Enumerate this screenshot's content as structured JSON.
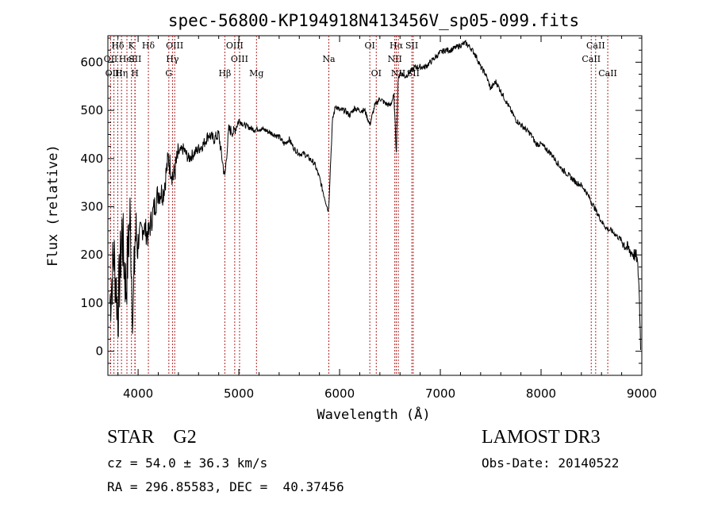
{
  "chart_data": {
    "type": "line",
    "title": "spec-56800-KP194918N413456V_sp05-099.fits",
    "xlabel": "Wavelength (Å)",
    "ylabel": "Flux (relative)",
    "xlim": [
      3700,
      9000
    ],
    "ylim": [
      -50,
      655
    ],
    "xticks": [
      4000,
      5000,
      6000,
      7000,
      8000,
      9000
    ],
    "yticks": [
      0,
      100,
      200,
      300,
      400,
      500,
      600
    ],
    "line_color": "#000000",
    "marker_color": "#b22222",
    "spectrum_anchor_points": {
      "x": [
        3720,
        3760,
        3800,
        3840,
        3880,
        3920,
        3950,
        3970,
        4000,
        4050,
        4100,
        4150,
        4200,
        4250,
        4300,
        4350,
        4400,
        4450,
        4500,
        4550,
        4600,
        4650,
        4700,
        4750,
        4800,
        4860,
        4900,
        4950,
        5000,
        5050,
        5100,
        5150,
        5200,
        5250,
        5300,
        5350,
        5400,
        5450,
        5500,
        5550,
        5600,
        5650,
        5700,
        5750,
        5800,
        5850,
        5890,
        5910,
        5930,
        5960,
        6000,
        6050,
        6100,
        6150,
        6200,
        6250,
        6300,
        6350,
        6400,
        6450,
        6500,
        6540,
        6563,
        6580,
        6600,
        6650,
        6700,
        6750,
        6800,
        6850,
        6900,
        6950,
        7000,
        7050,
        7100,
        7150,
        7200,
        7250,
        7300,
        7350,
        7400,
        7450,
        7500,
        7550,
        7600,
        7650,
        7700,
        7750,
        7800,
        7850,
        7900,
        7950,
        8000,
        8050,
        8100,
        8150,
        8200,
        8250,
        8300,
        8350,
        8400,
        8450,
        8500,
        8550,
        8600,
        8650,
        8700,
        8750,
        8800,
        8850,
        8900,
        8950,
        8970,
        8990
      ],
      "y": [
        100,
        200,
        80,
        250,
        130,
        280,
        60,
        240,
        230,
        260,
        240,
        290,
        330,
        330,
        400,
        360,
        410,
        420,
        400,
        410,
        420,
        430,
        450,
        440,
        450,
        360,
        460,
        455,
        480,
        470,
        465,
        460,
        462,
        460,
        455,
        450,
        445,
        430,
        440,
        420,
        410,
        410,
        400,
        390,
        360,
        320,
        290,
        390,
        480,
        510,
        500,
        500,
        490,
        505,
        500,
        500,
        470,
        510,
        525,
        515,
        510,
        530,
        410,
        560,
        580,
        570,
        580,
        590,
        590,
        590,
        600,
        610,
        620,
        625,
        625,
        630,
        635,
        640,
        630,
        615,
        590,
        575,
        545,
        560,
        540,
        520,
        500,
        480,
        470,
        460,
        450,
        430,
        430,
        420,
        410,
        395,
        380,
        370,
        360,
        350,
        345,
        330,
        310,
        290,
        270,
        255,
        250,
        240,
        230,
        215,
        205,
        195,
        150,
        0
      ]
    },
    "line_markers": [
      {
        "label": "Hδ",
        "x": 3798,
        "row": 0
      },
      {
        "label": "OII",
        "x": 3727,
        "row": 1
      },
      {
        "label": "OIII",
        "x": 3760,
        "row": 2
      },
      {
        "label": "Hη",
        "x": 3835,
        "row": 2
      },
      {
        "label": "HeI",
        "x": 3889,
        "row": 1
      },
      {
        "label": "K",
        "x": 3934,
        "row": 0
      },
      {
        "label": "SII",
        "x": 3970,
        "row": 1
      },
      {
        "label": "H",
        "x": 3968,
        "row": 2
      },
      {
        "label": "Hδ",
        "x": 4102,
        "row": 0
      },
      {
        "label": "OIII",
        "x": 4363,
        "row": 0
      },
      {
        "label": "Hγ",
        "x": 4341,
        "row": 1
      },
      {
        "label": "G",
        "x": 4305,
        "row": 2
      },
      {
        "label": "OIII",
        "x": 4959,
        "row": 0
      },
      {
        "label": "OIII",
        "x": 5007,
        "row": 1
      },
      {
        "label": "Hβ",
        "x": 4861,
        "row": 2
      },
      {
        "label": "Mg",
        "x": 5175,
        "row": 2
      },
      {
        "label": "Na",
        "x": 5893,
        "row": 1
      },
      {
        "label": "OI",
        "x": 6300,
        "row": 0
      },
      {
        "label": "OI",
        "x": 6364,
        "row": 2
      },
      {
        "label": "Hα",
        "x": 6563,
        "row": 0
      },
      {
        "label": "SII",
        "x": 6717,
        "row": 0
      },
      {
        "label": "NII",
        "x": 6548,
        "row": 1
      },
      {
        "label": "NII",
        "x": 6583,
        "row": 2
      },
      {
        "label": "SII",
        "x": 6731,
        "row": 2
      },
      {
        "label": "CaII",
        "x": 8542,
        "row": 0
      },
      {
        "label": "CaII",
        "x": 8498,
        "row": 1
      },
      {
        "label": "CaII",
        "x": 8662,
        "row": 2
      }
    ]
  },
  "info": {
    "object_class": "STAR    G2",
    "survey": "LAMOST DR3",
    "redshift": "cz = 54.0 ± 36.3 km/s",
    "obs_date": "Obs-Date: 20140522",
    "coords": "RA = 296.85583, DEC =  40.37456"
  }
}
